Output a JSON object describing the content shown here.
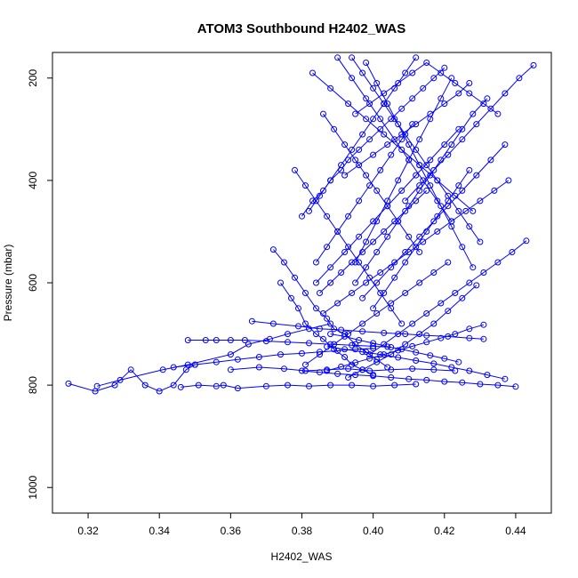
{
  "chart_data": {
    "type": "line",
    "title": "ATOM3 Southbound H2402_WAS",
    "xlabel": "H2402_WAS",
    "ylabel": "Pressure (mbar)",
    "xlim": [
      0.31,
      0.45
    ],
    "ylim": [
      1050,
      150
    ],
    "y_reversed": true,
    "x_ticks": [
      0.32,
      0.34,
      0.36,
      0.38,
      0.4,
      0.42,
      0.44
    ],
    "x_tick_labels": [
      "0.32",
      "0.34",
      "0.36",
      "0.38",
      "0.40",
      "0.42",
      "0.44"
    ],
    "y_ticks": [
      200,
      400,
      600,
      800,
      1000
    ],
    "y_tick_labels": [
      "200",
      "400",
      "600",
      "800",
      "1000"
    ],
    "color": "#0000ff",
    "marker": "open-circle",
    "series": [
      {
        "x": [
          0.3145,
          0.322,
          0.3275,
          0.332,
          0.336,
          0.34,
          0.344,
          0.3475,
          0.35
        ],
        "y": [
          797,
          812,
          800,
          770,
          800,
          812,
          800,
          770,
          760
        ]
      },
      {
        "x": [
          0.3225,
          0.329,
          0.341,
          0.348,
          0.36,
          0.365,
          0.371,
          0.376,
          0.382,
          0.388
        ],
        "y": [
          802,
          790,
          770,
          760,
          740,
          720,
          710,
          700,
          690,
          680
        ]
      },
      {
        "x": [
          0.344,
          0.35,
          0.356,
          0.362,
          0.368,
          0.374,
          0.38,
          0.385,
          0.39,
          0.395,
          0.4
        ],
        "y": [
          765,
          760,
          755,
          750,
          745,
          740,
          738,
          735,
          733,
          730,
          728
        ]
      },
      {
        "x": [
          0.346,
          0.351,
          0.356,
          0.358,
          0.362,
          0.37,
          0.376,
          0.382,
          0.388,
          0.394,
          0.4,
          0.406,
          0.412
        ],
        "y": [
          804,
          800,
          802,
          800,
          806,
          802,
          800,
          802,
          800,
          800,
          802,
          800,
          798
        ]
      },
      {
        "x": [
          0.348,
          0.353,
          0.356,
          0.36,
          0.364,
          0.37,
          0.376,
          0.382,
          0.388,
          0.394,
          0.4,
          0.405
        ],
        "y": [
          712,
          712,
          712,
          712,
          712,
          714,
          716,
          718,
          720,
          722,
          724,
          726
        ]
      },
      {
        "x": [
          0.36,
          0.368,
          0.375,
          0.381,
          0.387,
          0.393,
          0.399,
          0.405,
          0.411,
          0.417,
          0.423
        ],
        "y": [
          770,
          765,
          768,
          772,
          770,
          768,
          772,
          770,
          768,
          770,
          772
        ]
      },
      {
        "x": [
          0.366,
          0.372,
          0.379,
          0.385,
          0.391,
          0.397,
          0.403,
          0.409,
          0.415,
          0.421,
          0.427,
          0.431
        ],
        "y": [
          675,
          680,
          685,
          690,
          692,
          695,
          698,
          700,
          703,
          705,
          708,
          710
        ]
      },
      {
        "x": [
          0.372,
          0.375,
          0.378,
          0.381,
          0.384,
          0.387,
          0.389,
          0.392,
          0.395,
          0.398,
          0.401,
          0.404
        ],
        "y": [
          535,
          560,
          590,
          620,
          650,
          670,
          690,
          700,
          720,
          735,
          750,
          765
        ]
      },
      {
        "x": [
          0.374,
          0.377,
          0.379,
          0.381,
          0.384,
          0.386,
          0.389,
          0.392,
          0.394,
          0.397,
          0.4
        ],
        "y": [
          600,
          630,
          650,
          680,
          700,
          710,
          730,
          745,
          760,
          770,
          780
        ]
      },
      {
        "x": [
          0.38,
          0.383,
          0.386,
          0.388,
          0.391,
          0.393,
          0.396,
          0.399,
          0.402,
          0.405,
          0.408,
          0.411,
          0.414,
          0.417,
          0.42
        ],
        "y": [
          470,
          440,
          420,
          400,
          380,
          360,
          340,
          320,
          300,
          280,
          260,
          240,
          220,
          200,
          180
        ]
      },
      {
        "x": [
          0.386,
          0.389,
          0.392,
          0.395,
          0.398,
          0.401,
          0.404,
          0.407,
          0.41,
          0.413
        ],
        "y": [
          270,
          300,
          330,
          360,
          390,
          420,
          450,
          480,
          510,
          540
        ]
      },
      {
        "x": [
          0.383,
          0.388,
          0.393,
          0.398,
          0.403,
          0.408,
          0.413,
          0.418,
          0.423,
          0.428
        ],
        "y": [
          190,
          220,
          250,
          280,
          310,
          340,
          370,
          400,
          430,
          460
        ]
      },
      {
        "x": [
          0.39,
          0.394,
          0.398,
          0.402,
          0.406,
          0.41,
          0.414,
          0.418,
          0.422
        ],
        "y": [
          160,
          200,
          240,
          280,
          320,
          360,
          400,
          440,
          480
        ]
      },
      {
        "x": [
          0.384,
          0.387,
          0.39,
          0.393,
          0.396,
          0.399,
          0.402,
          0.405,
          0.408,
          0.411
        ],
        "y": [
          560,
          530,
          500,
          470,
          440,
          410,
          380,
          350,
          320,
          290
        ]
      },
      {
        "x": [
          0.395,
          0.398,
          0.401,
          0.404,
          0.407,
          0.41,
          0.413,
          0.416,
          0.419,
          0.422,
          0.425,
          0.428,
          0.432
        ],
        "y": [
          600,
          570,
          540,
          510,
          480,
          450,
          420,
          390,
          360,
          330,
          300,
          270,
          240
        ]
      },
      {
        "x": [
          0.4,
          0.403,
          0.406,
          0.409,
          0.412,
          0.415,
          0.418,
          0.421,
          0.424,
          0.427
        ],
        "y": [
          650,
          620,
          590,
          560,
          530,
          500,
          470,
          440,
          410,
          380
        ]
      },
      {
        "x": [
          0.437,
          0.433,
          0.429,
          0.425,
          0.421,
          0.417,
          0.413,
          0.409,
          0.405,
          0.401,
          0.397
        ],
        "y": [
          330,
          360,
          390,
          420,
          450,
          480,
          510,
          540,
          570,
          600,
          630
        ]
      },
      {
        "x": [
          0.443,
          0.439,
          0.435,
          0.431,
          0.427,
          0.423,
          0.419,
          0.415,
          0.411,
          0.407,
          0.403,
          0.399
        ],
        "y": [
          518,
          540,
          560,
          580,
          600,
          620,
          640,
          660,
          680,
          700,
          720,
          740
        ]
      },
      {
        "x": [
          0.445,
          0.441,
          0.437,
          0.433,
          0.429,
          0.425,
          0.421,
          0.417,
          0.413,
          0.409
        ],
        "y": [
          175,
          200,
          230,
          260,
          290,
          320,
          350,
          380,
          410,
          440
        ]
      },
      {
        "x": [
          0.437,
          0.432,
          0.427,
          0.422,
          0.417,
          0.412,
          0.407,
          0.402,
          0.397,
          0.392,
          0.387
        ],
        "y": [
          788,
          780,
          772,
          765,
          758,
          752,
          746,
          740,
          735,
          730,
          725
        ]
      },
      {
        "x": [
          0.44,
          0.435,
          0.43,
          0.425,
          0.42,
          0.415,
          0.41,
          0.405,
          0.4,
          0.395,
          0.39,
          0.385,
          0.38
        ],
        "y": [
          803,
          800,
          798,
          795,
          793,
          790,
          788,
          785,
          782,
          780,
          778,
          775,
          772
        ]
      },
      {
        "x": [
          0.431,
          0.427,
          0.423,
          0.419,
          0.415,
          0.411,
          0.407,
          0.403,
          0.399,
          0.395,
          0.391,
          0.387
        ],
        "y": [
          682,
          690,
          700,
          708,
          716,
          724,
          732,
          740,
          748,
          756,
          764,
          772
        ]
      },
      {
        "x": [
          0.429,
          0.425,
          0.421,
          0.417,
          0.413,
          0.409,
          0.405,
          0.401,
          0.397,
          0.393
        ],
        "y": [
          605,
          630,
          655,
          680,
          700,
          720,
          740,
          755,
          770,
          785
        ]
      },
      {
        "x": [
          0.438,
          0.434,
          0.43,
          0.426,
          0.422,
          0.418,
          0.414,
          0.41,
          0.406,
          0.402,
          0.398,
          0.394,
          0.39,
          0.386
        ],
        "y": [
          400,
          420,
          440,
          460,
          480,
          500,
          520,
          540,
          560,
          580,
          600,
          620,
          640,
          660
        ]
      },
      {
        "x": [
          0.435,
          0.431,
          0.427,
          0.423,
          0.419,
          0.415,
          0.411,
          0.407,
          0.403,
          0.399,
          0.395
        ],
        "y": [
          270,
          250,
          230,
          210,
          190,
          170,
          190,
          210,
          230,
          250,
          270
        ]
      },
      {
        "x": [
          0.394,
          0.397,
          0.4,
          0.403,
          0.406,
          0.409,
          0.412,
          0.415,
          0.418,
          0.421,
          0.424,
          0.427,
          0.43
        ],
        "y": [
          160,
          190,
          220,
          250,
          280,
          310,
          340,
          370,
          400,
          430,
          460,
          490,
          520
        ]
      },
      {
        "x": [
          0.412,
          0.409,
          0.406,
          0.403,
          0.4,
          0.397,
          0.394,
          0.391,
          0.388,
          0.385,
          0.382
        ],
        "y": [
          160,
          190,
          220,
          250,
          280,
          310,
          340,
          370,
          400,
          430,
          460
        ]
      },
      {
        "x": [
          0.385,
          0.388,
          0.391,
          0.394,
          0.397,
          0.4,
          0.403,
          0.406,
          0.409,
          0.412,
          0.415
        ],
        "y": [
          620,
          600,
          580,
          560,
          540,
          520,
          500,
          480,
          460,
          440,
          420
        ]
      },
      {
        "x": [
          0.378,
          0.381,
          0.384,
          0.387,
          0.39,
          0.393,
          0.396,
          0.399,
          0.402,
          0.405,
          0.408
        ],
        "y": [
          380,
          410,
          440,
          470,
          500,
          530,
          560,
          590,
          620,
          650,
          680
        ]
      },
      {
        "x": [
          0.422,
          0.419,
          0.416,
          0.413,
          0.41,
          0.407,
          0.404,
          0.401,
          0.398,
          0.395
        ],
        "y": [
          200,
          240,
          280,
          320,
          360,
          400,
          440,
          480,
          520,
          560
        ]
      },
      {
        "x": [
          0.424,
          0.42,
          0.416,
          0.412,
          0.408,
          0.404,
          0.4,
          0.396,
          0.392,
          0.388,
          0.384
        ],
        "y": [
          300,
          330,
          360,
          390,
          420,
          450,
          480,
          510,
          540,
          570,
          600
        ]
      },
      {
        "x": [
          0.392,
          0.396,
          0.4,
          0.404,
          0.408,
          0.412,
          0.416,
          0.42,
          0.424,
          0.427
        ],
        "y": [
          390,
          370,
          350,
          330,
          310,
          290,
          270,
          250,
          230,
          210
        ]
      },
      {
        "x": [
          0.381,
          0.385,
          0.389,
          0.393,
          0.397,
          0.401,
          0.405,
          0.409,
          0.413,
          0.417,
          0.421
        ],
        "y": [
          760,
          740,
          720,
          700,
          680,
          660,
          640,
          620,
          600,
          580,
          560
        ]
      },
      {
        "x": [
          0.388,
          0.392,
          0.396,
          0.4,
          0.404,
          0.408,
          0.412,
          0.416,
          0.42,
          0.424
        ],
        "y": [
          700,
          705,
          712,
          718,
          725,
          730,
          736,
          742,
          748,
          755
        ]
      },
      {
        "x": [
          0.398,
          0.401,
          0.404,
          0.407,
          0.41,
          0.413,
          0.416,
          0.419,
          0.422,
          0.425,
          0.428
        ],
        "y": [
          170,
          210,
          250,
          290,
          330,
          370,
          410,
          450,
          490,
          530,
          570
        ]
      }
    ]
  }
}
